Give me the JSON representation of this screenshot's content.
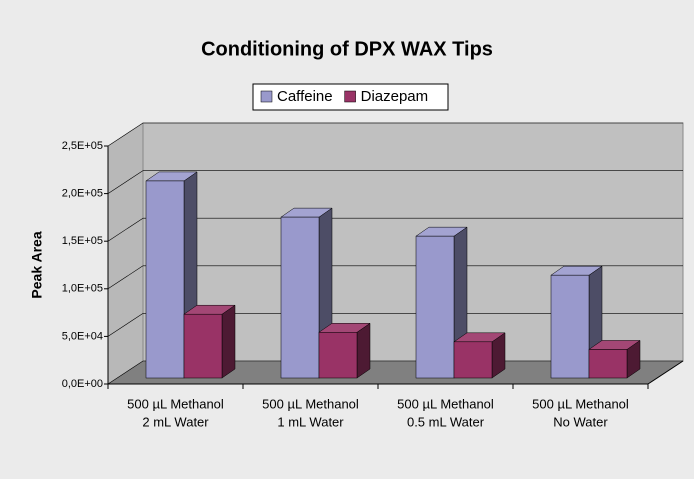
{
  "chart_data": {
    "type": "bar3d",
    "title": "Conditioning of DPX WAX Tips",
    "y_label": "Peak Area",
    "categories": [
      [
        "500 µL Methanol",
        "2 mL Water"
      ],
      [
        "500 µL Methanol",
        "1 mL Water"
      ],
      [
        "500 µL Methanol",
        "0.5 mL Water"
      ],
      [
        "500 µL Methanol",
        "No Water"
      ]
    ],
    "series": [
      {
        "name": "Caffeine",
        "color": "#9999cc",
        "values": [
          207000,
          169000,
          149000,
          108000
        ]
      },
      {
        "name": "Diazepam",
        "color": "#993366",
        "values": [
          67000,
          48000,
          38000,
          30000
        ]
      }
    ],
    "ylim": [
      0,
      250000
    ],
    "yticks": [
      {
        "value": 0,
        "label": "0,0E+00"
      },
      {
        "value": 50000,
        "label": "5,0E+04"
      },
      {
        "value": 100000,
        "label": "1,0E+05"
      },
      {
        "value": 150000,
        "label": "1,5E+05"
      },
      {
        "value": 200000,
        "label": "2,0E+05"
      },
      {
        "value": 250000,
        "label": "2,5E+05"
      }
    ],
    "grid": true,
    "legend": "top"
  }
}
